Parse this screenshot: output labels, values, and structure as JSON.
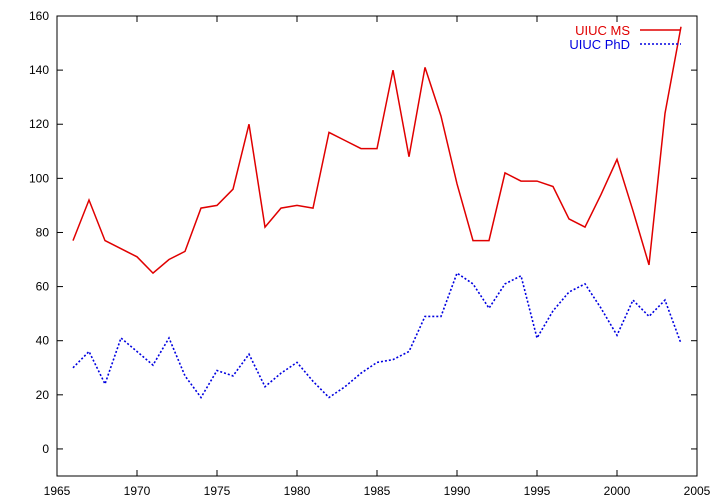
{
  "chart_data": {
    "type": "line",
    "title": "",
    "xlabel": "",
    "ylabel": "",
    "xlim": [
      1965,
      2005
    ],
    "ylim": [
      -10,
      160
    ],
    "xticks": [
      1965,
      1970,
      1975,
      1980,
      1985,
      1990,
      1995,
      2000,
      2005
    ],
    "yticks": [
      0,
      20,
      40,
      60,
      80,
      100,
      120,
      140,
      160
    ],
    "grid": false,
    "legend_position": "top-right",
    "series": [
      {
        "name": "UIUC MS",
        "color": "#e00000",
        "style": "solid",
        "x": [
          1966,
          1967,
          1968,
          1969,
          1970,
          1971,
          1972,
          1973,
          1974,
          1975,
          1976,
          1977,
          1978,
          1979,
          1980,
          1981,
          1982,
          1983,
          1984,
          1985,
          1986,
          1987,
          1988,
          1989,
          1990,
          1991,
          1992,
          1993,
          1994,
          1995,
          1996,
          1997,
          1998,
          1999,
          2000,
          2001,
          2002,
          2003,
          2004
        ],
        "y": [
          77,
          92,
          77,
          74,
          71,
          65,
          70,
          73,
          89,
          90,
          96,
          120,
          82,
          89,
          90,
          89,
          117,
          114,
          111,
          111,
          140,
          108,
          141,
          123,
          98,
          77,
          77,
          102,
          99,
          99,
          97,
          85,
          82,
          94,
          107,
          88,
          68,
          124,
          156
        ]
      },
      {
        "name": "UIUC PhD",
        "color": "#0000e0",
        "style": "dotted",
        "x": [
          1966,
          1967,
          1968,
          1969,
          1970,
          1971,
          1972,
          1973,
          1974,
          1975,
          1976,
          1977,
          1978,
          1979,
          1980,
          1981,
          1982,
          1983,
          1984,
          1985,
          1986,
          1987,
          1988,
          1989,
          1990,
          1991,
          1992,
          1993,
          1994,
          1995,
          1996,
          1997,
          1998,
          1999,
          2000,
          2001,
          2002,
          2003,
          2004
        ],
        "y": [
          30,
          36,
          24,
          41,
          36,
          31,
          41,
          27,
          19,
          29,
          27,
          35,
          23,
          28,
          32,
          25,
          19,
          23,
          28,
          32,
          33,
          36,
          49,
          49,
          65,
          61,
          52,
          61,
          64,
          41,
          51,
          58,
          61,
          52,
          42,
          55,
          49,
          55,
          39
        ]
      }
    ]
  }
}
